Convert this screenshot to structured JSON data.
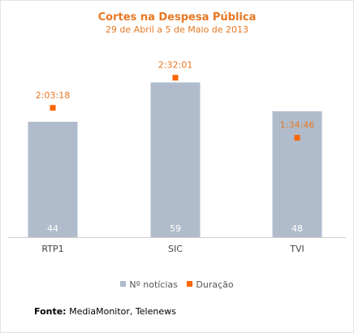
{
  "chart_data": {
    "type": "bar",
    "title": "Cortes na Despesa Pública",
    "subtitle": "29 de Abril a 5 de Maio de 2013",
    "categories": [
      "RTP1",
      "SIC",
      "TVI"
    ],
    "series": [
      {
        "name": "Nº notícias",
        "type": "bar",
        "values": [
          44,
          59,
          48
        ],
        "color": "#b0bccb"
      },
      {
        "name": "Duração",
        "type": "scatter",
        "values": [
          7398,
          9121,
          5686
        ],
        "labels": [
          "2:03:18",
          "2:32:01",
          "1:34:46"
        ],
        "color": "#ff6600"
      }
    ],
    "ylim_bars": [
      0,
      70
    ],
    "ylim_duration": [
      0,
      10500
    ],
    "legend_position": "bottom",
    "grid": false
  },
  "colors": {
    "title": "#e87722",
    "bar": "#b0bccb",
    "marker": "#ff6600",
    "duration_label": "#e87722"
  },
  "source": {
    "label": "Fonte:",
    "text": "MediaMonitor, Telenews"
  }
}
